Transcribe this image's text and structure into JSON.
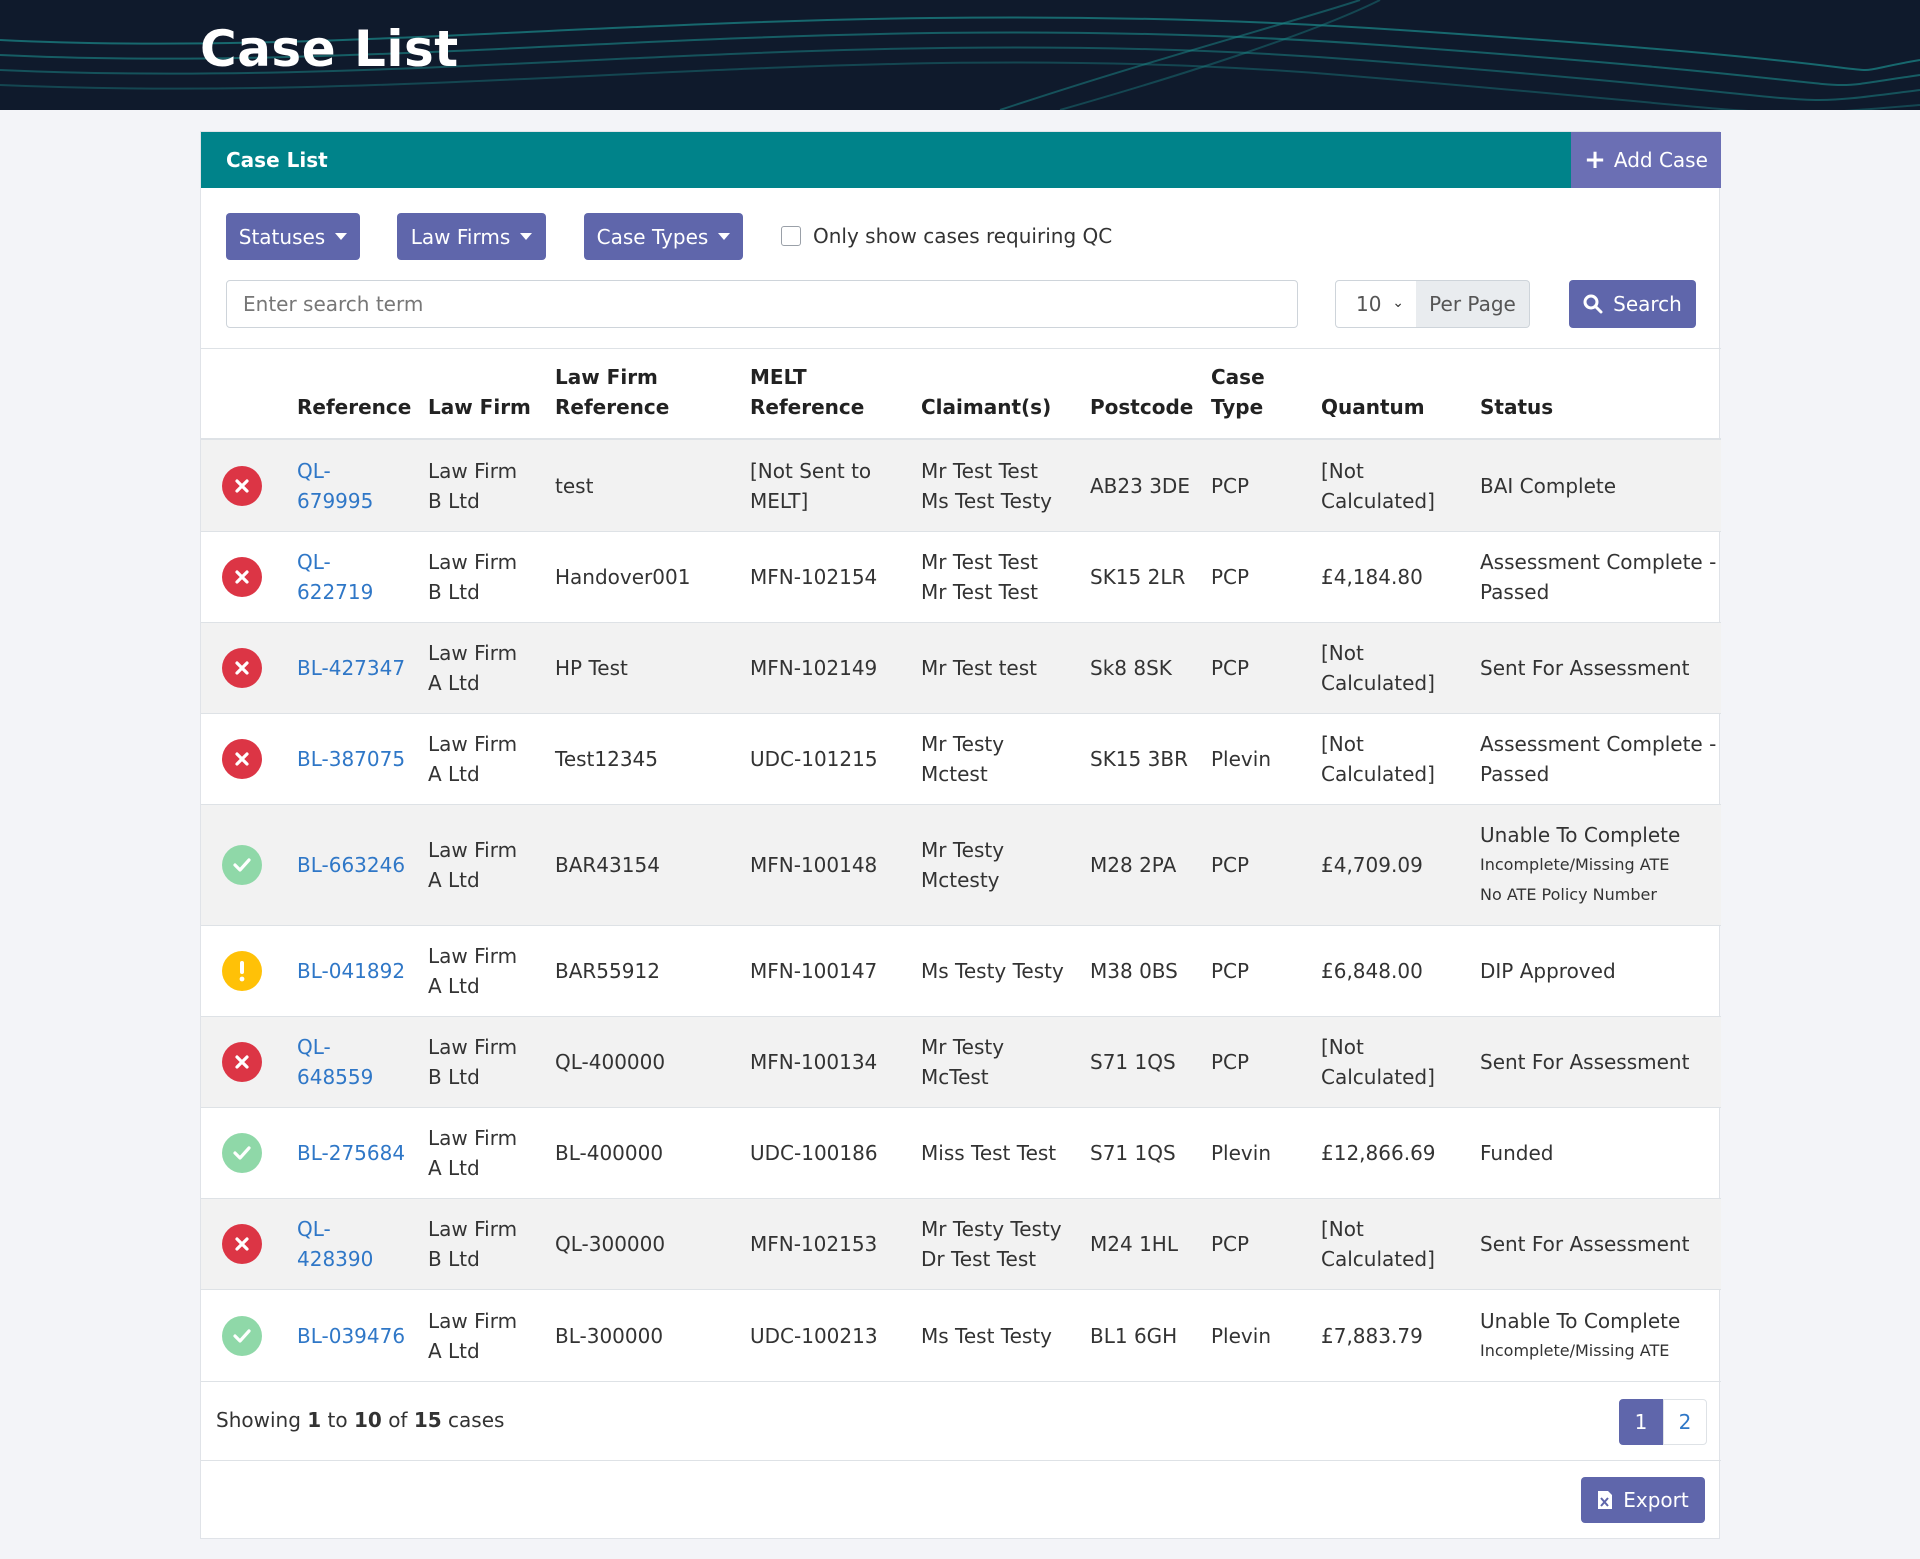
{
  "page": {
    "title": "Case List"
  },
  "card": {
    "title": "Case List",
    "add_case_label": "Add Case"
  },
  "filters": {
    "statuses_label": "Statuses",
    "law_firms_label": "Law Firms",
    "case_types_label": "Case Types",
    "qc_checkbox_label": "Only show cases requiring QC",
    "qc_checked": false,
    "search_placeholder": "Enter search term",
    "search_value": "",
    "per_page_value": "10",
    "per_page_label": "Per Page",
    "search_button_label": "Search"
  },
  "colors": {
    "header_teal": "#00838a",
    "primary": "#5f66ab",
    "link": "#2f77c7",
    "error_red": "#dc3545",
    "success_green": "#8fd8a8",
    "warning_yellow": "#ffc107"
  },
  "table": {
    "headers": {
      "reference": "Reference",
      "law_firm": "Law Firm",
      "law_firm_reference_1": "Law Firm",
      "law_firm_reference_2": "Reference",
      "melt_reference_1": "MELT",
      "melt_reference_2": "Reference",
      "claimants": "Claimant(s)",
      "postcode": "Postcode",
      "case_type_1": "Case",
      "case_type_2": "Type",
      "quantum": "Quantum",
      "status": "Status"
    },
    "rows": [
      {
        "status_icon": "error-x-icon",
        "reference_1": "QL-",
        "reference_2": "679995",
        "law_firm_1": "Law Firm",
        "law_firm_2": "B Ltd",
        "law_firm_reference": "test",
        "melt_1": "[Not Sent to",
        "melt_2": "MELT]",
        "claimant_1": "Mr Test Test",
        "claimant_2": "Ms Test Testy",
        "postcode": "AB23 3DE",
        "case_type": "PCP",
        "quantum_1": "[Not",
        "quantum_2": "Calculated]",
        "status_1": "BAI Complete",
        "status_2": "",
        "status_sub_1": "",
        "status_sub_2": ""
      },
      {
        "status_icon": "error-x-icon",
        "reference_1": "QL-",
        "reference_2": "622719",
        "law_firm_1": "Law Firm",
        "law_firm_2": "B Ltd",
        "law_firm_reference": "Handover001",
        "melt_1": "MFN-102154",
        "melt_2": "",
        "claimant_1": "Mr Test Test",
        "claimant_2": "Mr Test Test",
        "postcode": "SK15 2LR",
        "case_type": "PCP",
        "quantum_1": "£4,184.80",
        "quantum_2": "",
        "status_1": "Assessment Complete -",
        "status_2": "Passed",
        "status_sub_1": "",
        "status_sub_2": ""
      },
      {
        "status_icon": "error-x-icon",
        "reference_1": "BL-427347",
        "reference_2": "",
        "law_firm_1": "Law Firm",
        "law_firm_2": "A Ltd",
        "law_firm_reference": "HP Test",
        "melt_1": "MFN-102149",
        "melt_2": "",
        "claimant_1": "Mr Test test",
        "claimant_2": "",
        "postcode": "Sk8 8SK",
        "case_type": "PCP",
        "quantum_1": "[Not",
        "quantum_2": "Calculated]",
        "status_1": "Sent For Assessment",
        "status_2": "",
        "status_sub_1": "",
        "status_sub_2": ""
      },
      {
        "status_icon": "error-x-icon",
        "reference_1": "BL-387075",
        "reference_2": "",
        "law_firm_1": "Law Firm",
        "law_firm_2": "A Ltd",
        "law_firm_reference": "Test12345",
        "melt_1": "UDC-101215",
        "melt_2": "",
        "claimant_1": "Mr Testy",
        "claimant_2": "Mctest",
        "postcode": "SK15 3BR",
        "case_type": "Plevin",
        "quantum_1": "[Not",
        "quantum_2": "Calculated]",
        "status_1": "Assessment Complete -",
        "status_2": "Passed",
        "status_sub_1": "",
        "status_sub_2": ""
      },
      {
        "status_icon": "check-icon",
        "reference_1": "BL-663246",
        "reference_2": "",
        "law_firm_1": "Law Firm",
        "law_firm_2": "A Ltd",
        "law_firm_reference": "BAR43154",
        "melt_1": "MFN-100148",
        "melt_2": "",
        "claimant_1": "Mr Testy",
        "claimant_2": "Mctesty",
        "postcode": "M28 2PA",
        "case_type": "PCP",
        "quantum_1": "£4,709.09",
        "quantum_2": "",
        "status_1": "Unable To Complete",
        "status_2": "",
        "status_sub_1": "Incomplete/Missing ATE",
        "status_sub_2": "No ATE Policy Number"
      },
      {
        "status_icon": "warning-exclamation-icon",
        "reference_1": "BL-041892",
        "reference_2": "",
        "law_firm_1": "Law Firm",
        "law_firm_2": "A Ltd",
        "law_firm_reference": "BAR55912",
        "melt_1": "MFN-100147",
        "melt_2": "",
        "claimant_1": "Ms Testy Testy",
        "claimant_2": "",
        "postcode": "M38 0BS",
        "case_type": "PCP",
        "quantum_1": "£6,848.00",
        "quantum_2": "",
        "status_1": "DIP Approved",
        "status_2": "",
        "status_sub_1": "",
        "status_sub_2": ""
      },
      {
        "status_icon": "error-x-icon",
        "reference_1": "QL-",
        "reference_2": "648559",
        "law_firm_1": "Law Firm",
        "law_firm_2": "B Ltd",
        "law_firm_reference": "QL-400000",
        "melt_1": "MFN-100134",
        "melt_2": "",
        "claimant_1": "Mr Testy",
        "claimant_2": "McTest",
        "postcode": "S71 1QS",
        "case_type": "PCP",
        "quantum_1": "[Not",
        "quantum_2": "Calculated]",
        "status_1": "Sent For Assessment",
        "status_2": "",
        "status_sub_1": "",
        "status_sub_2": ""
      },
      {
        "status_icon": "check-icon",
        "reference_1": "BL-275684",
        "reference_2": "",
        "law_firm_1": "Law Firm",
        "law_firm_2": "A Ltd",
        "law_firm_reference": "BL-400000",
        "melt_1": "UDC-100186",
        "melt_2": "",
        "claimant_1": "Miss Test Test",
        "claimant_2": "",
        "postcode": "S71 1QS",
        "case_type": "Plevin",
        "quantum_1": "£12,866.69",
        "quantum_2": "",
        "status_1": "Funded",
        "status_2": "",
        "status_sub_1": "",
        "status_sub_2": ""
      },
      {
        "status_icon": "error-x-icon",
        "reference_1": "QL-",
        "reference_2": "428390",
        "law_firm_1": "Law Firm",
        "law_firm_2": "B Ltd",
        "law_firm_reference": "QL-300000",
        "melt_1": "MFN-102153",
        "melt_2": "",
        "claimant_1": "Mr Testy Testy",
        "claimant_2": "Dr Test Test",
        "postcode": "M24 1HL",
        "case_type": "PCP",
        "quantum_1": "[Not",
        "quantum_2": "Calculated]",
        "status_1": "Sent For Assessment",
        "status_2": "",
        "status_sub_1": "",
        "status_sub_2": ""
      },
      {
        "status_icon": "check-icon",
        "reference_1": "BL-039476",
        "reference_2": "",
        "law_firm_1": "Law Firm",
        "law_firm_2": "A Ltd",
        "law_firm_reference": "BL-300000",
        "melt_1": "UDC-100213",
        "melt_2": "",
        "claimant_1": "Ms Test Testy",
        "claimant_2": "",
        "postcode": "BL1 6GH",
        "case_type": "Plevin",
        "quantum_1": "£7,883.79",
        "quantum_2": "",
        "status_1": "Unable To Complete",
        "status_2": "",
        "status_sub_1": "Incomplete/Missing ATE",
        "status_sub_2": ""
      }
    ]
  },
  "footer": {
    "showing_prefix": "Showing",
    "showing_from": "1",
    "showing_to_word": "to",
    "showing_to": "10",
    "showing_of_word": "of",
    "showing_total": "15",
    "showing_suffix": "cases",
    "pages": [
      "1",
      "2"
    ],
    "active_page": "1",
    "export_label": "Export"
  }
}
